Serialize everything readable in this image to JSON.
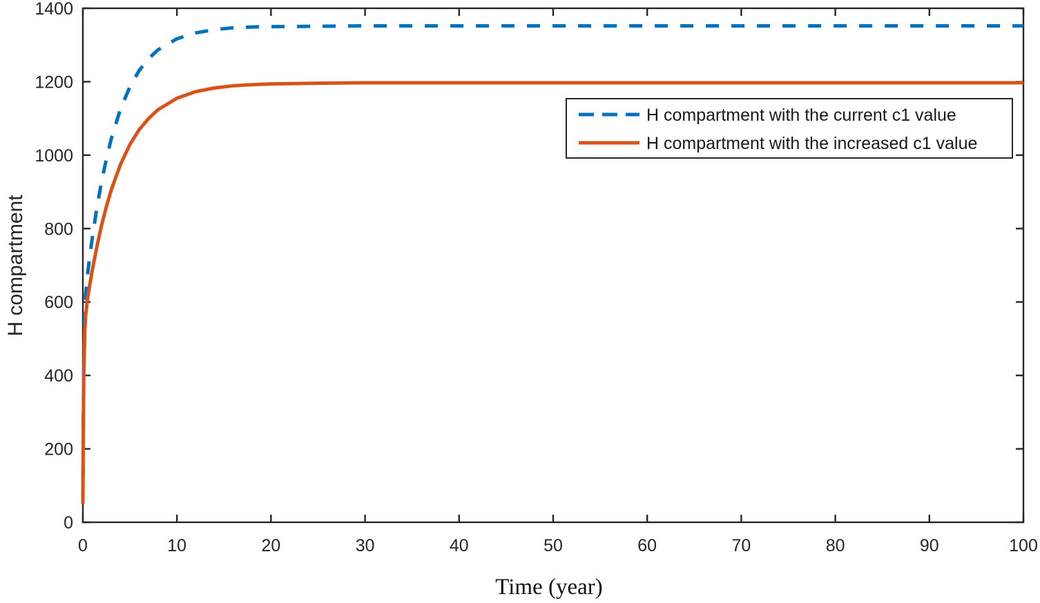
{
  "figure": {
    "background": "#ffffff",
    "axes_color": "#262626",
    "tick_label_color": "#262626"
  },
  "chart_data": {
    "type": "line",
    "title": "",
    "xlabel": "Time (year)",
    "ylabel": "H compartment",
    "xlim": [
      0,
      100
    ],
    "ylim": [
      0,
      1400
    ],
    "xticks": [
      0,
      10,
      20,
      30,
      40,
      50,
      60,
      70,
      80,
      90,
      100
    ],
    "yticks": [
      0,
      200,
      400,
      600,
      800,
      1000,
      1200,
      1400
    ],
    "grid": false,
    "box": true,
    "legend": {
      "position": "upper right",
      "border": true
    },
    "x": [
      0,
      0.05,
      0.1,
      0.2,
      0.3,
      0.5,
      0.75,
      1,
      1.5,
      2,
      2.5,
      3,
      4,
      5,
      6,
      7,
      8,
      10,
      12,
      14,
      16,
      18,
      20,
      25,
      30,
      40,
      50,
      60,
      70,
      80,
      90,
      100
    ],
    "series": [
      {
        "name": "H compartment with the current c1 value",
        "color": "#0072BD",
        "line_style": "dashed",
        "line_width": 5,
        "steady_state": 1352,
        "y": [
          50,
          300,
          440,
          568,
          621,
          675,
          727,
          774,
          858,
          929,
          990,
          1043,
          1126,
          1186,
          1231,
          1263,
          1287,
          1317,
          1333,
          1342,
          1347,
          1349,
          1350,
          1351,
          1352,
          1352,
          1352,
          1352,
          1352,
          1352,
          1352,
          1352
        ]
      },
      {
        "name": "H compartment with the increased c1 value",
        "color": "#D95319",
        "line_style": "solid",
        "line_width": 5,
        "steady_state": 1197,
        "y": [
          50,
          279,
          405,
          520,
          565,
          609,
          649,
          686,
          752,
          810,
          860,
          904,
          975,
          1029,
          1070,
          1100,
          1124,
          1155,
          1173,
          1183,
          1189,
          1192,
          1194,
          1196,
          1197,
          1197,
          1197,
          1197,
          1197,
          1197,
          1197,
          1197
        ]
      }
    ]
  }
}
